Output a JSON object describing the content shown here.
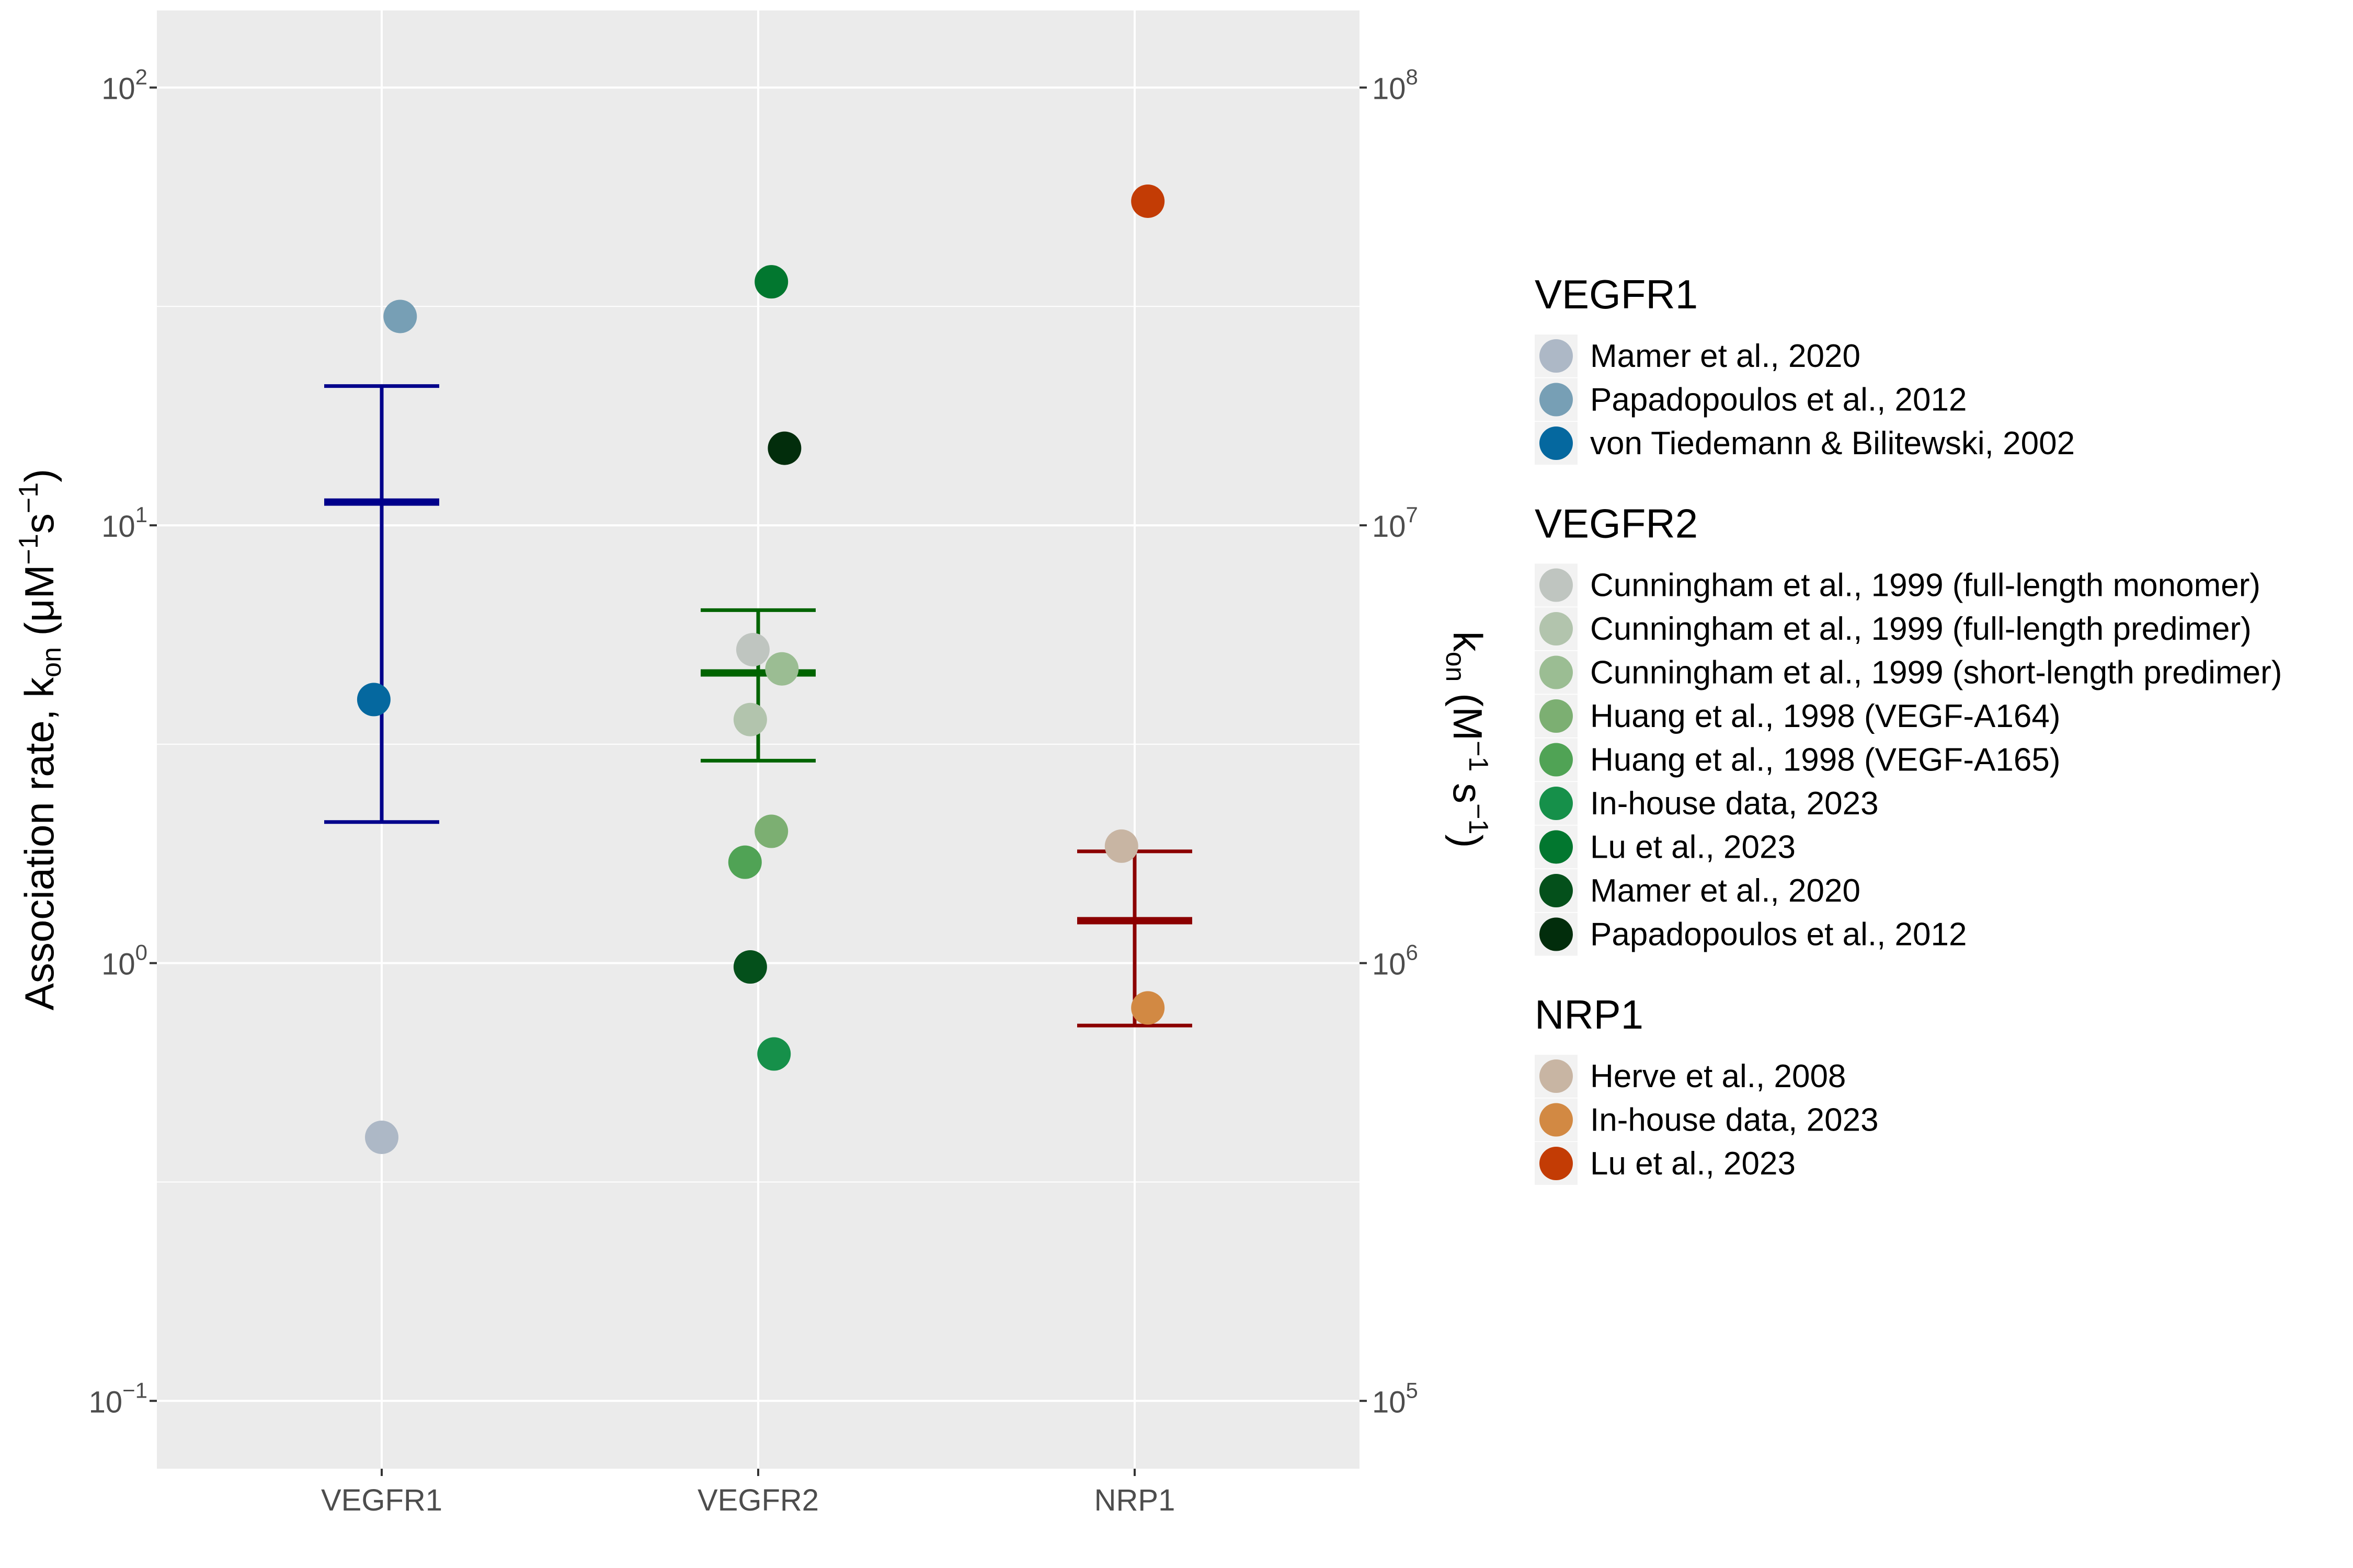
{
  "chart_data": {
    "type": "scatter",
    "categories": [
      "VEGFR1",
      "VEGFR2",
      "NRP1"
    ],
    "y_scale": "log10",
    "ylim": [
      0.07,
      150
    ],
    "ylabel": {
      "main": "Association rate, k",
      "sub": "on",
      "unit_open": " (μM",
      "sup1": "−1",
      "unit_mid": "s",
      "sup2": "−1",
      "unit_close": ")"
    },
    "y2label": {
      "main": "k",
      "sub": "on",
      "unit_open": " (M",
      "sup1": "−1",
      "unit_mid": " s",
      "sup2": "−1",
      "unit_close": ")"
    },
    "y_ticks": [
      {
        "value": 0.1,
        "base": "10",
        "exp": "−1"
      },
      {
        "value": 1,
        "base": "10",
        "exp": "0"
      },
      {
        "value": 10,
        "base": "10",
        "exp": "1"
      },
      {
        "value": 100,
        "base": "10",
        "exp": "2"
      }
    ],
    "y2_ticks": [
      {
        "value": 0.1,
        "base": "10",
        "exp": "5"
      },
      {
        "value": 1,
        "base": "10",
        "exp": "6"
      },
      {
        "value": 10,
        "base": "10",
        "exp": "7"
      },
      {
        "value": 100,
        "base": "10",
        "exp": "8"
      }
    ],
    "points": [
      {
        "category": "VEGFR1",
        "jitter": 0.0,
        "y": 0.4,
        "source": "Mamer et al., 2020",
        "color": "#adb8c6"
      },
      {
        "category": "VEGFR1",
        "jitter": 0.07,
        "y": 30,
        "source": "Papadopoulos et al., 2012",
        "color": "#779fb5"
      },
      {
        "category": "VEGFR1",
        "jitter": -0.03,
        "y": 4.0,
        "source": "von Tiedemann & Bilitewski, 2002",
        "color": "#05689f"
      },
      {
        "category": "VEGFR2",
        "jitter": -0.02,
        "y": 5.2,
        "source": "Cunningham et al., 1999 (full-length monomer)",
        "color": "#bfc5c0"
      },
      {
        "category": "VEGFR2",
        "jitter": -0.03,
        "y": 3.6,
        "source": "Cunningham et al., 1999 (full-length predimer)",
        "color": "#b2c4ad"
      },
      {
        "category": "VEGFR2",
        "jitter": 0.09,
        "y": 4.7,
        "source": "Cunningham et al., 1999 (short-length predimer)",
        "color": "#9bbd93"
      },
      {
        "category": "VEGFR2",
        "jitter": 0.05,
        "y": 2.0,
        "source": "Huang et al., 1998 (VEGF-A164)",
        "color": "#7caf72"
      },
      {
        "category": "VEGFR2",
        "jitter": -0.05,
        "y": 1.7,
        "source": "Huang et al., 1998 (VEGF-A165)",
        "color": "#50a355"
      },
      {
        "category": "VEGFR2",
        "jitter": 0.06,
        "y": 0.62,
        "source": "In-house data, 2023",
        "color": "#16904a"
      },
      {
        "category": "VEGFR2",
        "jitter": 0.05,
        "y": 36,
        "source": "Lu et al., 2023",
        "color": "#02772f"
      },
      {
        "category": "VEGFR2",
        "jitter": -0.03,
        "y": 0.98,
        "source": "Mamer et al., 2020",
        "color": "#04501b"
      },
      {
        "category": "VEGFR2",
        "jitter": 0.1,
        "y": 15,
        "source": "Papadopoulos et al., 2012",
        "color": "#022d0c"
      },
      {
        "category": "NRP1",
        "jitter": -0.05,
        "y": 1.85,
        "source": "Herve et al., 2008",
        "color": "#c8b5a3"
      },
      {
        "category": "NRP1",
        "jitter": 0.05,
        "y": 0.79,
        "source": "In-house data, 2023",
        "color": "#d28943"
      },
      {
        "category": "NRP1",
        "jitter": 0.05,
        "y": 55,
        "source": "Lu et al., 2023",
        "color": "#c33c05"
      }
    ],
    "summaries": [
      {
        "category": "VEGFR1",
        "mean": 11.3,
        "lower": 2.1,
        "upper": 20.8,
        "color": "#00008b"
      },
      {
        "category": "VEGFR2",
        "mean": 4.6,
        "lower": 2.9,
        "upper": 6.4,
        "color": "#006400"
      },
      {
        "category": "NRP1",
        "mean": 1.25,
        "lower": 0.72,
        "upper": 1.8,
        "color": "#8b0000"
      }
    ],
    "legend": {
      "position": "right",
      "groups": [
        {
          "title": "VEGFR1",
          "items": [
            {
              "label": "Mamer et al., 2020",
              "color": "#adb8c6"
            },
            {
              "label": "Papadopoulos et al., 2012",
              "color": "#779fb5"
            },
            {
              "label": "von Tiedemann & Bilitewski, 2002",
              "color": "#05689f"
            }
          ]
        },
        {
          "title": "VEGFR2",
          "items": [
            {
              "label": "Cunningham et al., 1999 (full-length monomer)",
              "color": "#bfc5c0"
            },
            {
              "label": "Cunningham et al., 1999 (full-length predimer)",
              "color": "#b2c4ad"
            },
            {
              "label": "Cunningham et al., 1999 (short-length predimer)",
              "color": "#9bbd93"
            },
            {
              "label": "Huang et al., 1998 (VEGF-A164)",
              "color": "#7caf72"
            },
            {
              "label": "Huang et al., 1998 (VEGF-A165)",
              "color": "#50a355"
            },
            {
              "label": "In-house data, 2023",
              "color": "#16904a"
            },
            {
              "label": "Lu et al., 2023",
              "color": "#02772f"
            },
            {
              "label": "Mamer et al., 2020",
              "color": "#04501b"
            },
            {
              "label": "Papadopoulos et al., 2012",
              "color": "#022d0c"
            }
          ]
        },
        {
          "title": "NRP1",
          "items": [
            {
              "label": "Herve et al., 2008",
              "color": "#c8b5a3"
            },
            {
              "label": "In-house data, 2023",
              "color": "#d28943"
            },
            {
              "label": "Lu et al., 2023",
              "color": "#c33c05"
            }
          ]
        }
      ]
    },
    "grid": true,
    "panel_background": "#ebebeb"
  }
}
